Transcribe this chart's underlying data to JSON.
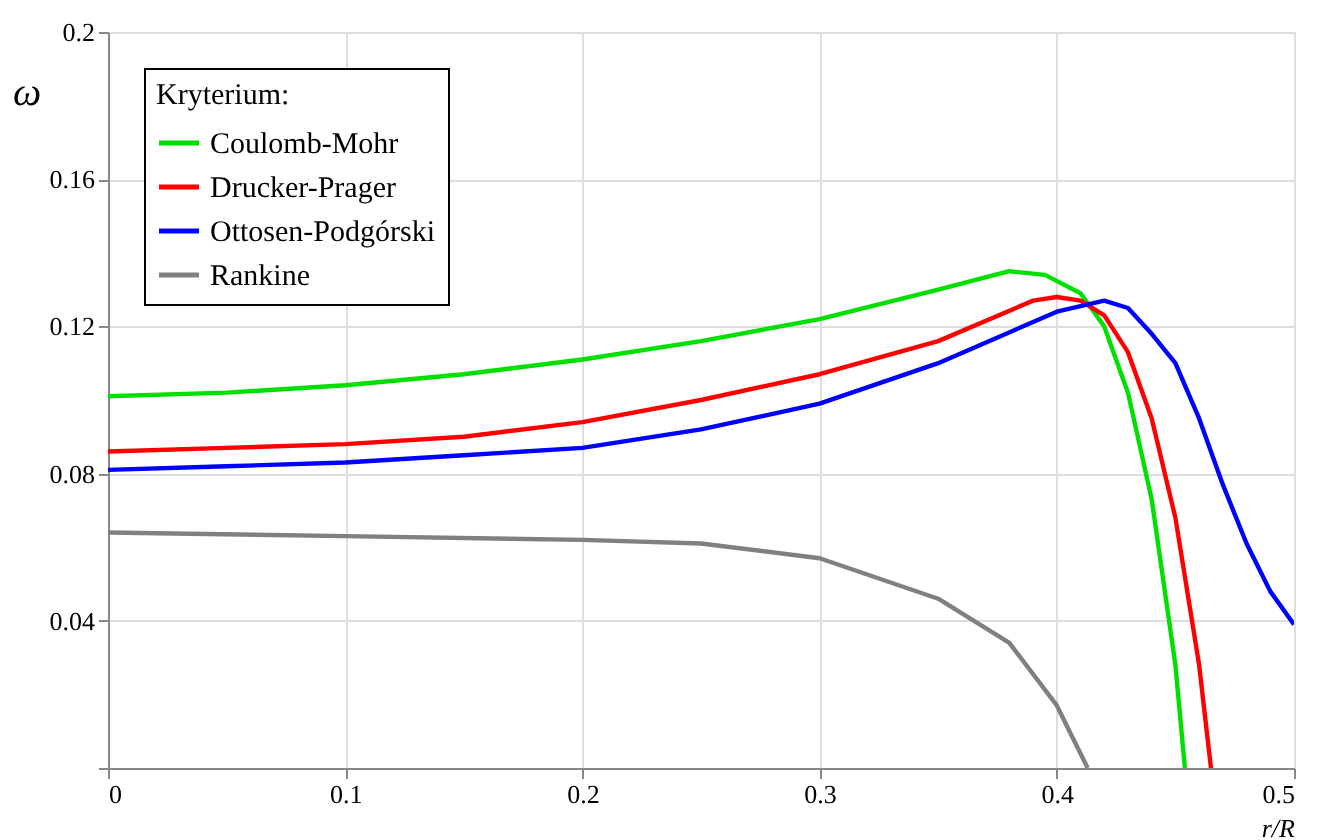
{
  "chart_data": {
    "type": "line",
    "xlabel": "r/R",
    "ylabel": "ω",
    "legend_title": "Kryterium:",
    "legend": "top left",
    "grid": true,
    "line_style": "solid",
    "marker": "none",
    "xlim": [
      0,
      0.5
    ],
    "ylim": [
      0,
      0.2
    ],
    "xticks": [
      0,
      0.1,
      0.2,
      0.3,
      0.4,
      0.5
    ],
    "yticks": [
      {
        "value": 0,
        "label": null
      },
      0.04,
      0.08,
      0.12,
      0.16,
      0.2
    ],
    "series": [
      {
        "name": "Coulomb-Mohr",
        "color": "#00e000",
        "x": [
          0,
          0.05,
          0.1,
          0.15,
          0.2,
          0.25,
          0.3,
          0.35,
          0.38,
          0.395,
          0.41,
          0.42,
          0.43,
          0.44,
          0.45,
          0.454
        ],
        "values": [
          0.101,
          0.102,
          0.104,
          0.107,
          0.111,
          0.116,
          0.122,
          0.13,
          0.135,
          0.134,
          0.129,
          0.12,
          0.102,
          0.073,
          0.028,
          0
        ]
      },
      {
        "name": "Drucker-Prager",
        "color": "#ff0000",
        "x": [
          0,
          0.05,
          0.1,
          0.15,
          0.2,
          0.25,
          0.3,
          0.35,
          0.39,
          0.4,
          0.41,
          0.42,
          0.43,
          0.44,
          0.45,
          0.46,
          0.465
        ],
        "values": [
          0.086,
          0.087,
          0.088,
          0.09,
          0.094,
          0.1,
          0.107,
          0.116,
          0.127,
          0.128,
          0.127,
          0.123,
          0.113,
          0.095,
          0.068,
          0.028,
          0
        ]
      },
      {
        "name": "Ottosen-Podgórski",
        "color": "#0000ff",
        "x": [
          0,
          0.05,
          0.1,
          0.15,
          0.2,
          0.25,
          0.3,
          0.35,
          0.4,
          0.42,
          0.43,
          0.44,
          0.45,
          0.46,
          0.47,
          0.48,
          0.49,
          0.5
        ],
        "values": [
          0.081,
          0.082,
          0.083,
          0.085,
          0.087,
          0.092,
          0.099,
          0.11,
          0.124,
          0.127,
          0.125,
          0.118,
          0.11,
          0.095,
          0.077,
          0.061,
          0.048,
          0.039
        ]
      },
      {
        "name": "Rankine",
        "color": "#808080",
        "x": [
          0,
          0.1,
          0.2,
          0.25,
          0.3,
          0.35,
          0.38,
          0.4,
          0.413
        ],
        "values": [
          0.064,
          0.063,
          0.062,
          0.061,
          0.057,
          0.046,
          0.034,
          0.017,
          0
        ]
      }
    ]
  }
}
